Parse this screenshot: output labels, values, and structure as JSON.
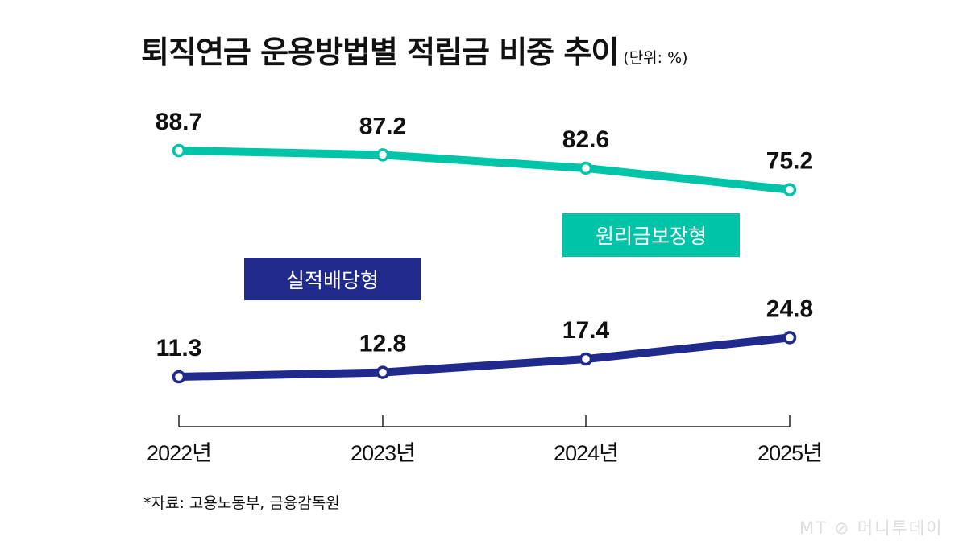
{
  "chart_data": {
    "type": "line",
    "title": "퇴직연금 운용방법별 적립금 비중 추이",
    "unit": "(단위: %)",
    "categories": [
      "2022년",
      "2023년",
      "2024년",
      "2025년"
    ],
    "series": [
      {
        "name": "원리금보장형",
        "values": [
          88.7,
          87.2,
          82.6,
          75.2
        ],
        "color": "#00C4A8"
      },
      {
        "name": "실적배당형",
        "values": [
          11.3,
          12.8,
          17.4,
          24.8
        ],
        "color": "#1F2A8C"
      }
    ],
    "grid": false,
    "broken_axis": true
  },
  "source": "*자료: 고용노동부, 금융감독원",
  "logo": "MT 머니투데이"
}
